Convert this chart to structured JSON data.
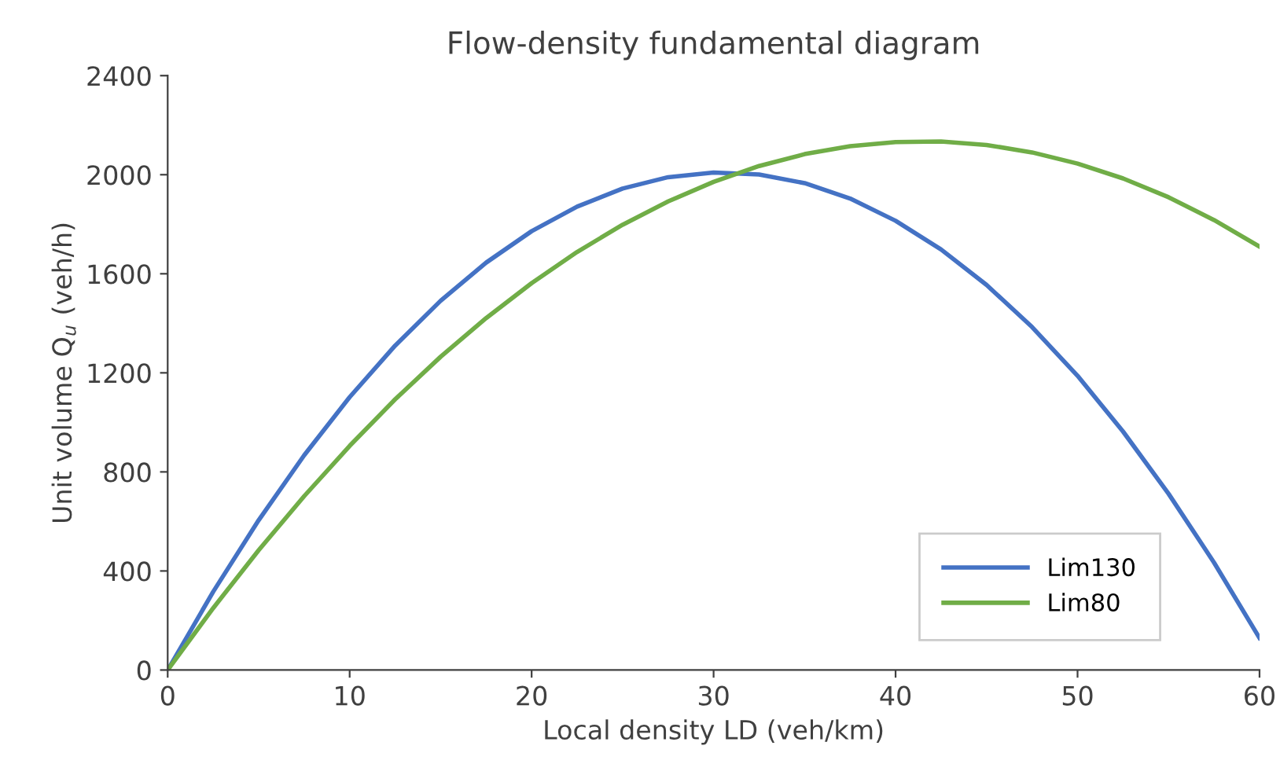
{
  "chart_data": {
    "type": "line",
    "title": "Flow-density fundamental diagram",
    "xlabel": "Local density LD (veh/km)",
    "ylabel": "Unit volume Q$_{u}$ (veh/h)",
    "x": [
      0,
      2.5,
      5,
      7.5,
      10,
      12.5,
      15,
      17.5,
      20,
      22.5,
      25,
      27.5,
      30,
      32.5,
      35,
      37.5,
      40,
      42.5,
      45,
      47.5,
      50,
      52.5,
      55,
      57.5,
      60
    ],
    "series": [
      {
        "name": "Lim130",
        "color": "#4472c4",
        "values": [
          0,
          316,
          605,
          867,
          1102,
          1310,
          1491,
          1645,
          1772,
          1871,
          1944,
          1990,
          2009,
          2001,
          1966,
          1904,
          1814,
          1698,
          1555,
          1385,
          1188,
          963,
          712,
          434,
          129
        ]
      },
      {
        "name": "Lim80",
        "color": "#70ad47",
        "values": [
          0,
          250,
          484,
          702,
          905,
          1093,
          1265,
          1421,
          1562,
          1688,
          1798,
          1892,
          1971,
          2035,
          2083,
          2115,
          2132,
          2134,
          2120,
          2090,
          2045,
          1985,
          1909,
          1817,
          1710
        ]
      }
    ],
    "xlim": [
      0,
      60
    ],
    "xticks": [
      0,
      10,
      20,
      30,
      40,
      50,
      60
    ],
    "ylim": [
      0,
      2400
    ],
    "yticks": [
      0,
      400,
      800,
      1200,
      1600,
      2000,
      2400
    ],
    "grid": false,
    "legend": "bottom right",
    "marker": "none",
    "line_style": "solid"
  }
}
